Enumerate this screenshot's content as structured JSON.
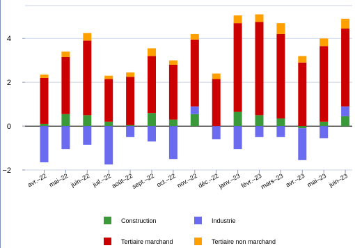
{
  "chart_data": {
    "type": "bar",
    "stacked": true,
    "categories": [
      "avr.–22",
      "mai–22",
      "juin–22",
      "juil.–22",
      "août–22",
      "sept.–22",
      "oct.–22",
      "nov.–22",
      "déc.–22",
      "janv.–23",
      "févr.–23",
      "mars–23",
      "avr.–23",
      "mai–23",
      "juin–23"
    ],
    "series": [
      {
        "name": "Construction",
        "color": "#3a9a3a",
        "values": [
          0.1,
          0.55,
          0.5,
          0.2,
          0.05,
          0.6,
          0.3,
          0.55,
          0.0,
          0.65,
          0.5,
          0.35,
          -0.1,
          0.2,
          0.45
        ]
      },
      {
        "name": "Industrie",
        "color": "#6b6bf0",
        "values": [
          -1.65,
          -1.05,
          -0.85,
          -1.75,
          -0.5,
          -0.7,
          -1.5,
          0.35,
          -0.6,
          -1.05,
          -0.5,
          -0.5,
          -1.45,
          -0.55,
          0.45
        ]
      },
      {
        "name": "Tertiaire marchand",
        "color": "#cc0000",
        "values": [
          2.1,
          2.6,
          3.4,
          1.95,
          2.2,
          2.6,
          2.5,
          3.05,
          2.15,
          4.05,
          4.25,
          3.85,
          2.9,
          3.45,
          3.55
        ]
      },
      {
        "name": "Tertiaire non marchand",
        "color": "#ff9f00",
        "values": [
          0.15,
          0.25,
          0.35,
          0.15,
          0.2,
          0.35,
          0.2,
          0.25,
          0.25,
          0.35,
          0.35,
          0.5,
          0.3,
          0.35,
          0.45
        ]
      }
    ],
    "ylim": [
      -2,
      5.5
    ],
    "yticks": [
      -2,
      0,
      2,
      4
    ],
    "ytick_labels": [
      "−2",
      "0",
      "2",
      "4"
    ],
    "grid": "horizontal",
    "legend_position": "bottom",
    "title": "",
    "xlabel": "",
    "ylabel": ""
  }
}
